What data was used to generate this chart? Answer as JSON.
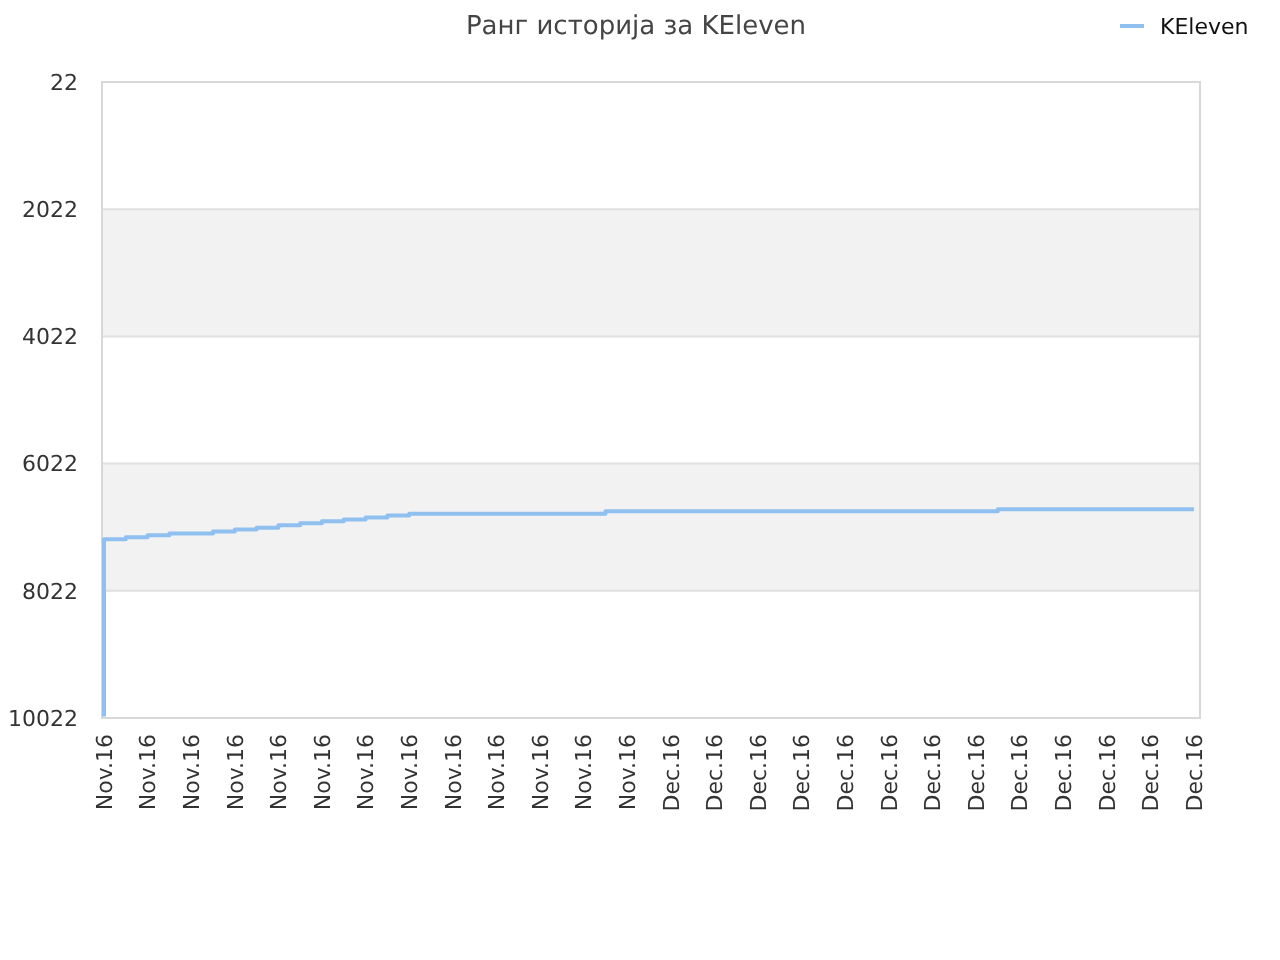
{
  "chart_data": {
    "type": "step",
    "title": "Ранг историја за KEleven",
    "categories": [
      "Nov.16",
      null,
      "Nov.16",
      null,
      "Nov.16",
      null,
      "Nov.16",
      null,
      "Nov.16",
      null,
      "Nov.16",
      null,
      "Nov.16",
      null,
      "Nov.16",
      null,
      "Nov.16",
      null,
      "Nov.16",
      null,
      "Nov.16",
      null,
      "Nov.16",
      null,
      "Nov.16",
      null,
      "Dec.16",
      null,
      "Dec.16",
      null,
      "Dec.16",
      null,
      "Dec.16",
      null,
      "Dec.16",
      null,
      "Dec.16",
      null,
      "Dec.16",
      null,
      "Dec.16",
      null,
      "Dec.16",
      null,
      "Dec.16",
      null,
      "Dec.16",
      null,
      "Dec.16",
      null,
      "Dec.16"
    ],
    "series": [
      {
        "name": "KEleven",
        "color": "#90c0f0",
        "values": [
          10000,
          7210,
          7180,
          7150,
          7120,
          7120,
          7090,
          7060,
          7030,
          6990,
          6960,
          6930,
          6900,
          6870,
          6840,
          6810,
          6810,
          6810,
          6810,
          6810,
          6810,
          6810,
          6810,
          6810,
          6770,
          6770,
          6770,
          6770,
          6770,
          6770,
          6770,
          6770,
          6770,
          6770,
          6770,
          6770,
          6770,
          6770,
          6770,
          6770,
          6770,
          6770,
          6740,
          6740,
          6740,
          6740,
          6740,
          6740,
          6740,
          6740,
          6740
        ]
      }
    ],
    "ylim": [
      10022,
      22
    ],
    "yticks": [
      22,
      2022,
      4022,
      6022,
      8022,
      10022
    ],
    "bands": [
      {
        "axis": "y",
        "from": 2022,
        "to": 4022,
        "color": "#f2f2f2"
      },
      {
        "axis": "y",
        "from": 6022,
        "to": 8022,
        "color": "#f2f2f2"
      }
    ],
    "grid": "y",
    "legend": "top right",
    "marker": "none",
    "line_style": "solid"
  }
}
